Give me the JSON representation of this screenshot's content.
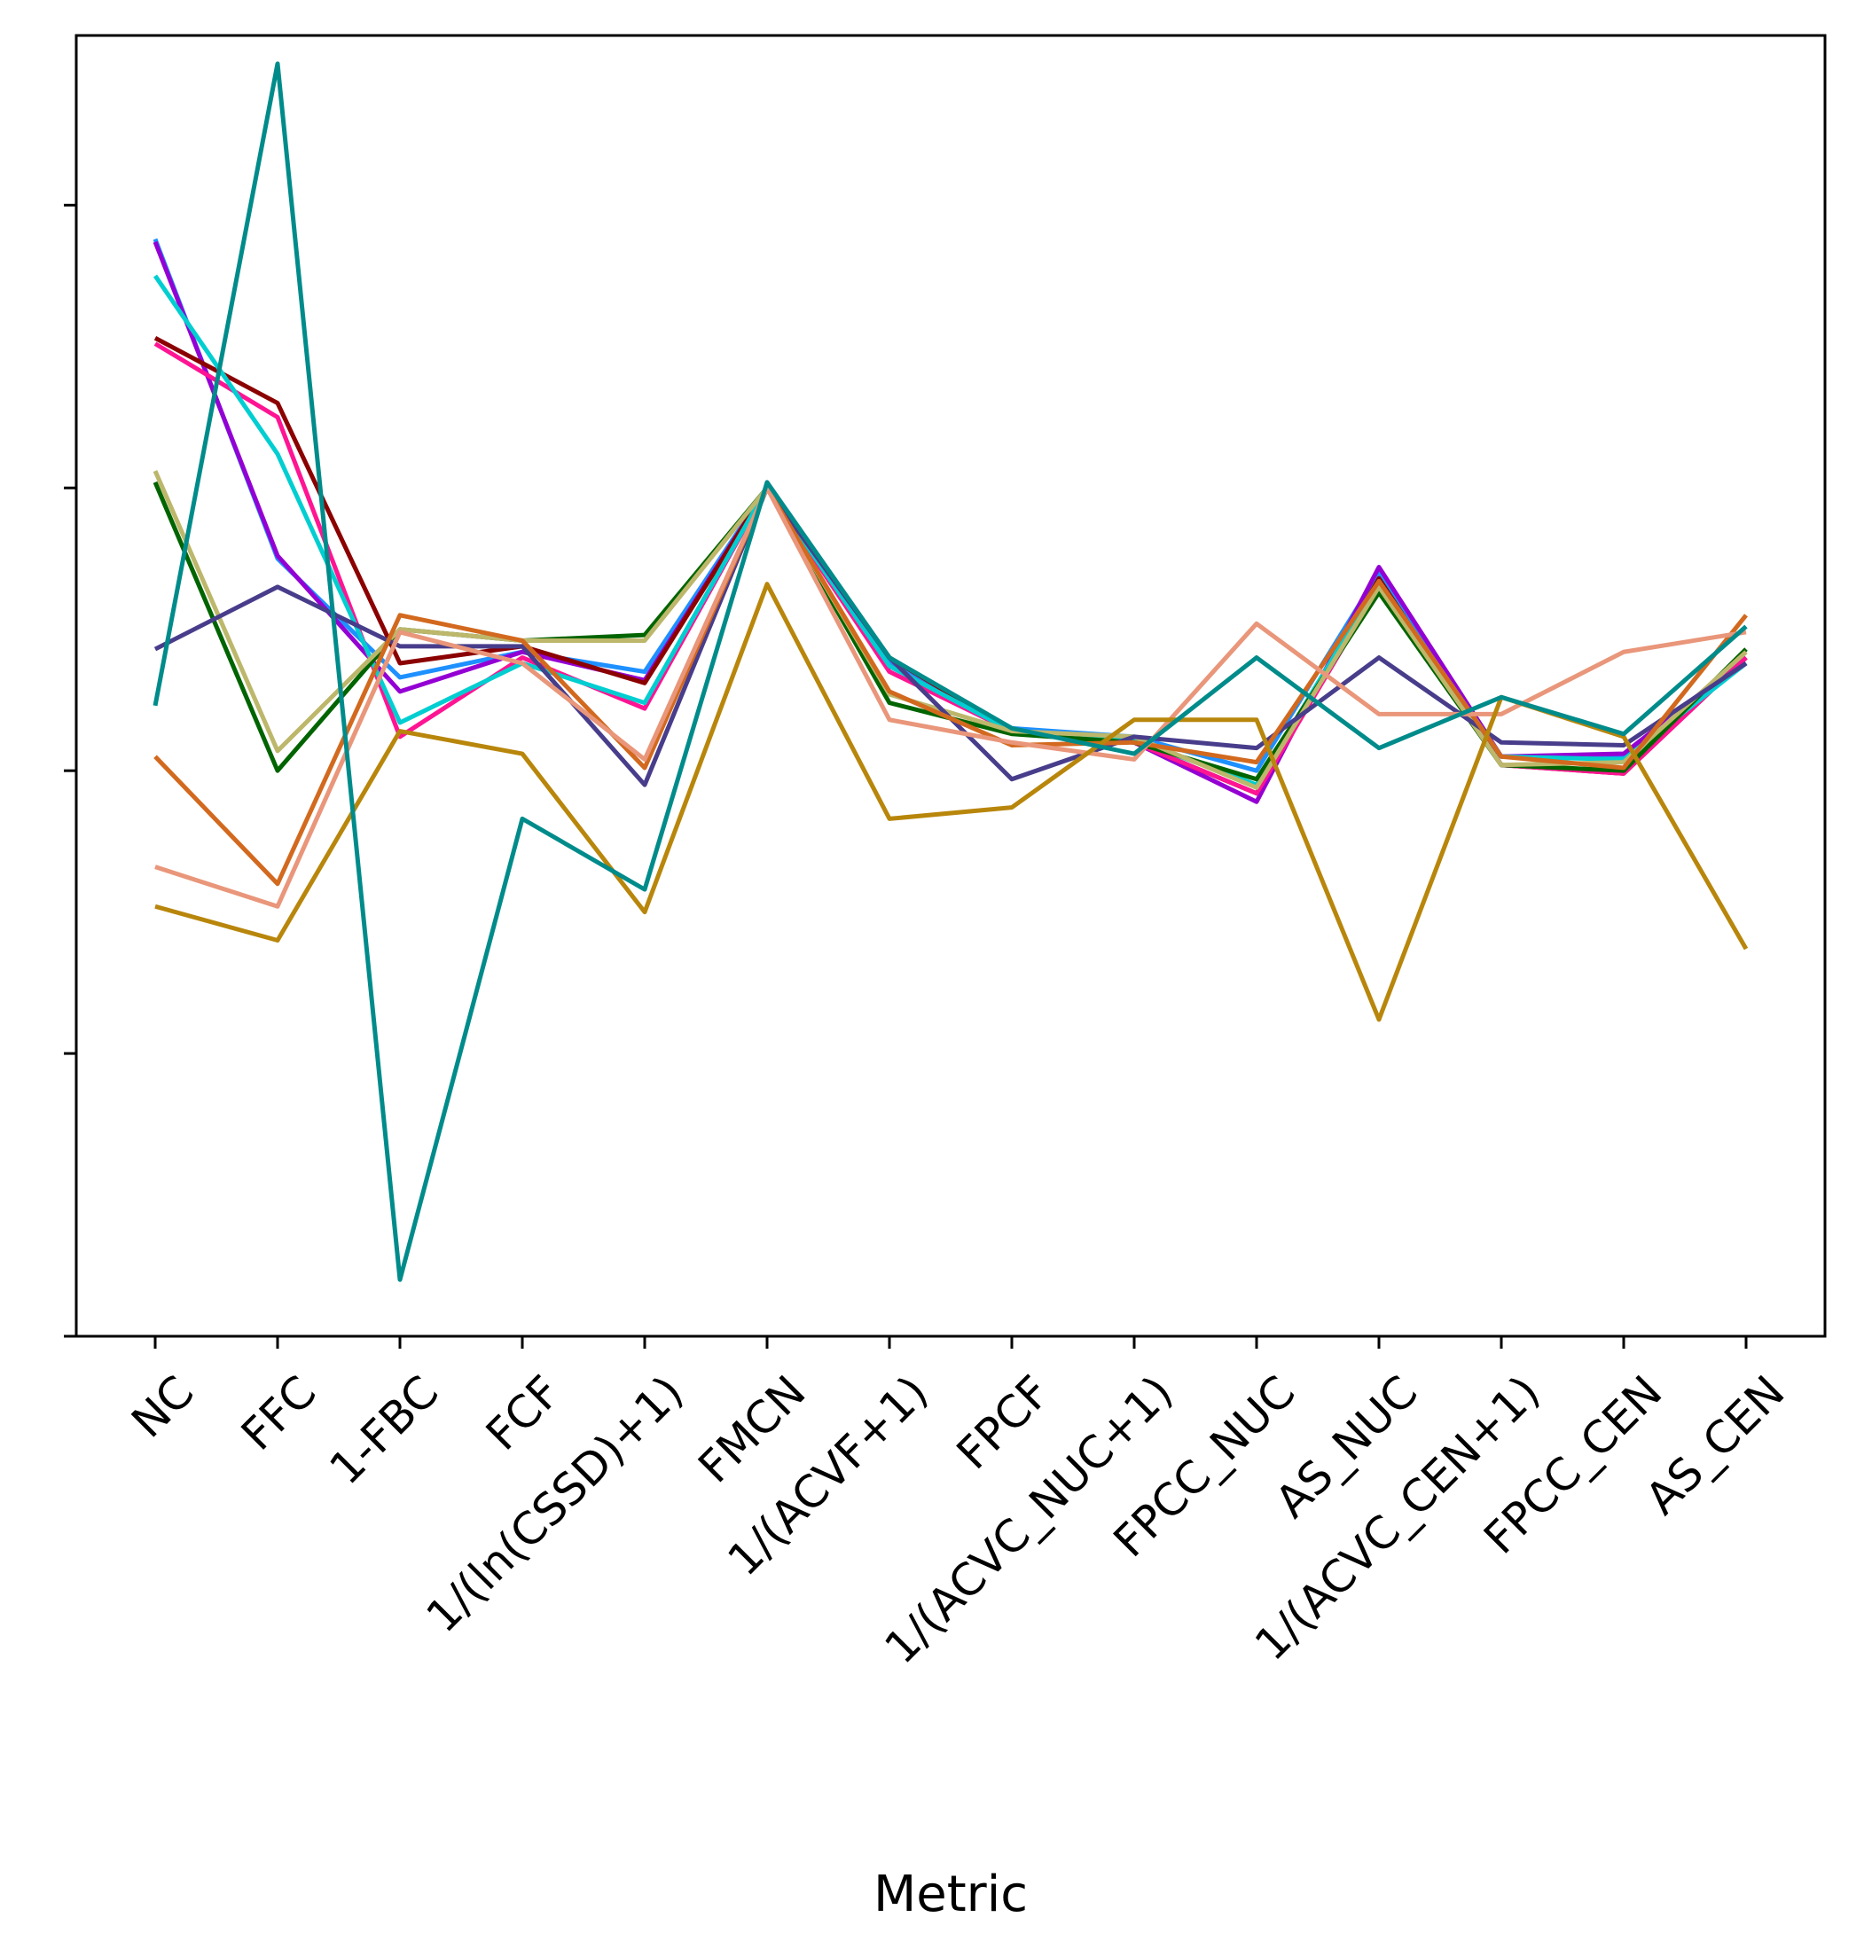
{
  "chart_data": {
    "type": "line",
    "title": "",
    "xlabel": "Metric",
    "ylabel": "",
    "categories": [
      "NC",
      "FFC",
      "1-FBC",
      "FCF",
      "1/(ln(CSSD)+1)",
      "FMCN",
      "1/(ACVF+1)",
      "FPCF",
      "1/(ACVC_NUC+1)",
      "FPCC_NUC",
      "AS_NUC",
      "1/(ACVC_CEN+1)",
      "FPCC_CEN",
      "AS_CEN"
    ],
    "ylim": [
      -4.0,
      0.6
    ],
    "yticks": [
      -4.0,
      -3.0,
      -2.0,
      -1.0,
      0.0
    ],
    "show_ytick_labels": false,
    "grid": false,
    "series": [
      {
        "color": "#1e90ff",
        "values": [
          -0.12,
          -1.25,
          -1.67,
          -1.58,
          -1.65,
          -1.0,
          -1.62,
          -1.85,
          -1.88,
          -2.0,
          -1.3,
          -1.95,
          -1.95,
          -1.62
        ]
      },
      {
        "color": "#9400d3",
        "values": [
          -0.13,
          -1.24,
          -1.72,
          -1.58,
          -1.68,
          -1.0,
          -1.63,
          -1.86,
          -1.9,
          -2.11,
          -1.28,
          -1.95,
          -1.94,
          -1.6
        ]
      },
      {
        "color": "#8b0000",
        "values": [
          -0.47,
          -0.7,
          -1.62,
          -1.56,
          -1.69,
          -1.0,
          -1.6,
          -1.86,
          -1.9,
          -2.08,
          -1.32,
          -1.98,
          -2.01,
          -1.6
        ]
      },
      {
        "color": "#ff1493",
        "values": [
          -0.49,
          -0.75,
          -1.88,
          -1.6,
          -1.78,
          -1.0,
          -1.65,
          -1.86,
          -1.9,
          -2.08,
          -1.35,
          -1.98,
          -2.01,
          -1.6
        ]
      },
      {
        "color": "#00ced1",
        "values": [
          -0.25,
          -0.88,
          -1.83,
          -1.62,
          -1.76,
          -1.0,
          -1.63,
          -1.86,
          -1.89,
          -2.05,
          -1.33,
          -1.95,
          -1.96,
          -1.62
        ]
      },
      {
        "color": "#006400",
        "values": [
          -0.98,
          -2.0,
          -1.5,
          -1.54,
          -1.52,
          -1.0,
          -1.76,
          -1.87,
          -1.9,
          -2.03,
          -1.37,
          -1.98,
          -2.0,
          -1.57
        ]
      },
      {
        "color": "#bdb76b",
        "values": [
          -0.94,
          -1.93,
          -1.5,
          -1.54,
          -1.54,
          -1.0,
          -1.73,
          -1.86,
          -1.88,
          -2.06,
          -1.35,
          -1.98,
          -1.97,
          -1.58
        ]
      },
      {
        "color": "#483d8b",
        "values": [
          -1.57,
          -1.35,
          -1.56,
          -1.56,
          -2.05,
          -1.0,
          -1.6,
          -2.03,
          -1.88,
          -1.92,
          -1.6,
          -1.9,
          -1.91,
          -1.62
        ]
      },
      {
        "color": "#d2691e",
        "values": [
          -1.95,
          -2.4,
          -1.45,
          -1.54,
          -1.99,
          -1.0,
          -1.72,
          -1.91,
          -1.9,
          -1.97,
          -1.33,
          -1.95,
          -1.99,
          -1.45
        ]
      },
      {
        "color": "#e9967a",
        "values": [
          -2.34,
          -2.48,
          -1.51,
          -1.62,
          -1.96,
          -1.0,
          -1.82,
          -1.9,
          -1.96,
          -1.48,
          -1.8,
          -1.8,
          -1.58,
          -1.51
        ]
      },
      {
        "color": "#b8860b",
        "values": [
          -2.48,
          -2.6,
          -1.86,
          -1.94,
          -2.5,
          -1.34,
          -2.17,
          -2.13,
          -1.82,
          -1.82,
          -2.88,
          -1.74,
          -1.88,
          -2.63
        ]
      },
      {
        "color": "#008b8b",
        "values": [
          -1.77,
          0.5,
          -3.8,
          -2.17,
          -2.42,
          -0.98,
          -1.6,
          -1.85,
          -1.94,
          -1.6,
          -1.92,
          -1.74,
          -1.87,
          -1.49
        ]
      }
    ]
  }
}
